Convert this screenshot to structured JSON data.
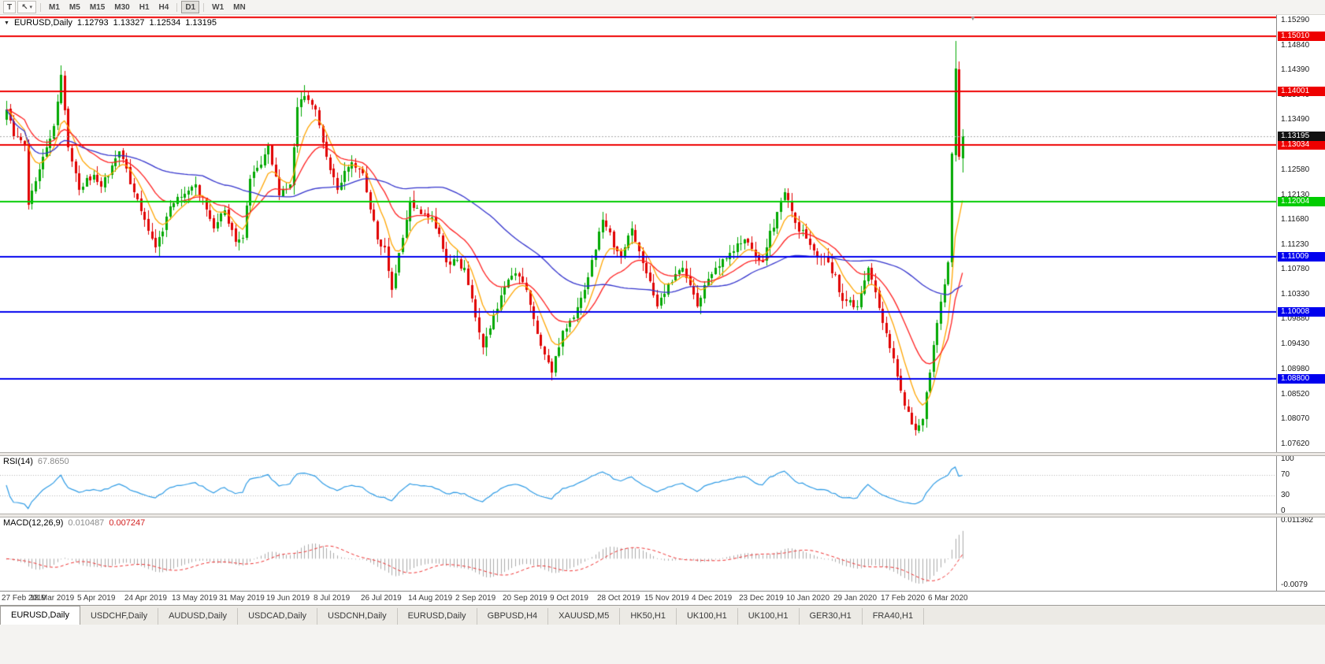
{
  "toolbar": {
    "text_tool": "T",
    "timeframes": [
      "M1",
      "M5",
      "M15",
      "M30",
      "H1",
      "H4",
      "D1",
      "W1",
      "MN"
    ],
    "active_timeframe": "D1"
  },
  "icons": {
    "header_caret": "▼",
    "dropdown_caret": "▾",
    "cursor_tool": "↖",
    "shift_marker": "▼"
  },
  "chart": {
    "header": {
      "symbol": "EURUSD,Daily",
      "open": "1.12793",
      "high": "1.13327",
      "low": "1.12534",
      "close": "1.13195"
    },
    "price_axis": {
      "max": 1.1529,
      "min": 1.0762,
      "ticks": [
        "1.15290",
        "1.14840",
        "1.14390",
        "1.13940",
        "1.13490",
        "1.13040",
        "1.12580",
        "1.12130",
        "1.11680",
        "1.11230",
        "1.10780",
        "1.10330",
        "1.09880",
        "1.09430",
        "1.08980",
        "1.08520",
        "1.08070",
        "1.07620"
      ]
    },
    "current_price": {
      "label": "1.13195",
      "bg": "#111111"
    },
    "date_axis": {
      "labels": [
        "27 Feb 2019",
        "18 Mar 2019",
        "5 Apr 2019",
        "24 Apr 2019",
        "13 May 2019",
        "31 May 2019",
        "19 Jun 2019",
        "8 Jul 2019",
        "26 Jul 2019",
        "14 Aug 2019",
        "2 Sep 2019",
        "20 Sep 2019",
        "9 Oct 2019",
        "28 Oct 2019",
        "15 Nov 2019",
        "4 Dec 2019",
        "23 Dec 2019",
        "10 Jan 2020",
        "29 Jan 2020",
        "17 Feb 2020",
        "6 Mar 2020"
      ]
    }
  },
  "rsi": {
    "name": "RSI(14)",
    "value": "67.8650",
    "ticks": [
      "100",
      "70",
      "30",
      "0"
    ]
  },
  "macd": {
    "name": "MACD(12,26,9)",
    "value_macd": "0.010487",
    "value_signal": "0.007247",
    "ticks": [
      "0.011362",
      "-0.0079"
    ]
  },
  "tabs": {
    "items": [
      "EURUSD,Daily",
      "USDCHF,Daily",
      "AUDUSD,Daily",
      "USDCAD,Daily",
      "USDCNH,Daily",
      "EURUSD,Daily",
      "GBPUSD,H4",
      "XAUUSD,M5",
      "HK50,H1",
      "UK100,H1",
      "UK100,H1",
      "GER30,H1",
      "FRA40,H1"
    ],
    "active_index": 0
  },
  "chart_data": {
    "type": "candlestick",
    "symbol": "EURUSD",
    "timeframe": "Daily",
    "last_candle": {
      "open": 1.12793,
      "high": 1.13327,
      "low": 1.12534,
      "close": 1.13195
    },
    "candle_count": 264,
    "x_label_every": 13,
    "noise": 0.0011,
    "seed": 9,
    "price_anchors": [
      [
        0,
        1.1368
      ],
      [
        2,
        1.132
      ],
      [
        5,
        1.1305
      ],
      [
        6,
        1.1196
      ],
      [
        8,
        1.1238
      ],
      [
        13,
        1.1338
      ],
      [
        15,
        1.143
      ],
      [
        17,
        1.13
      ],
      [
        20,
        1.1222
      ],
      [
        24,
        1.125
      ],
      [
        26,
        1.1228
      ],
      [
        31,
        1.1292
      ],
      [
        36,
        1.1205
      ],
      [
        39,
        1.1148
      ],
      [
        41,
        1.1118
      ],
      [
        45,
        1.1192
      ],
      [
        49,
        1.1215
      ],
      [
        52,
        1.1232
      ],
      [
        57,
        1.1152
      ],
      [
        60,
        1.1185
      ],
      [
        63,
        1.1128
      ],
      [
        65,
        1.1135
      ],
      [
        67,
        1.1242
      ],
      [
        70,
        1.1268
      ],
      [
        72,
        1.1302
      ],
      [
        75,
        1.1212
      ],
      [
        78,
        1.1232
      ],
      [
        80,
        1.1372
      ],
      [
        82,
        1.1392
      ],
      [
        85,
        1.1368
      ],
      [
        88,
        1.1282
      ],
      [
        91,
        1.1222
      ],
      [
        95,
        1.1272
      ],
      [
        98,
        1.1252
      ],
      [
        102,
        1.1132
      ],
      [
        104,
        1.1118
      ],
      [
        106,
        1.1042
      ],
      [
        108,
        1.1108
      ],
      [
        111,
        1.1202
      ],
      [
        114,
        1.1178
      ],
      [
        117,
        1.1172
      ],
      [
        121,
        1.1092
      ],
      [
        126,
        1.1082
      ],
      [
        129,
        1.0992
      ],
      [
        131,
        1.0938
      ],
      [
        133,
        1.0972
      ],
      [
        136,
        1.1032
      ],
      [
        140,
        1.1072
      ],
      [
        143,
        1.1042
      ],
      [
        146,
        1.0962
      ],
      [
        150,
        1.0892
      ],
      [
        153,
        1.0968
      ],
      [
        156,
        1.0992
      ],
      [
        159,
        1.1042
      ],
      [
        164,
        1.1168
      ],
      [
        169,
        1.1102
      ],
      [
        172,
        1.1152
      ],
      [
        176,
        1.1072
      ],
      [
        179,
        1.1012
      ],
      [
        182,
        1.1052
      ],
      [
        186,
        1.1082
      ],
      [
        190,
        1.1012
      ],
      [
        193,
        1.1062
      ],
      [
        195,
        1.1082
      ],
      [
        199,
        1.1108
      ],
      [
        203,
        1.1132
      ],
      [
        206,
        1.1102
      ],
      [
        208,
        1.1092
      ],
      [
        212,
        1.1182
      ],
      [
        214,
        1.1218
      ],
      [
        217,
        1.1162
      ],
      [
        221,
        1.1122
      ],
      [
        226,
        1.1092
      ],
      [
        230,
        1.1022
      ],
      [
        234,
        1.1012
      ],
      [
        237,
        1.1082
      ],
      [
        241,
        1.0982
      ],
      [
        244,
        1.0918
      ],
      [
        247,
        1.0832
      ],
      [
        250,
        1.0788
      ],
      [
        252,
        1.0808
      ],
      [
        254,
        1.0892
      ],
      [
        256,
        1.0982
      ],
      [
        258,
        1.1052
      ],
      [
        259,
        1.1092
      ],
      [
        260,
        1.1288
      ],
      [
        261,
        1.1442
      ],
      [
        262,
        1.1282
      ],
      [
        263,
        1.13195
      ]
    ],
    "candle_overrides": {
      "15": {
        "h": 1.1448
      },
      "82": {
        "h": 1.1412
      },
      "250": {
        "l": 1.0778
      },
      "261": {
        "h": 1.1492
      },
      "263": {
        "o": 1.12793,
        "h": 1.13327,
        "l": 1.12534,
        "c": 1.13195
      }
    },
    "horizontal_levels": [
      {
        "price": 1.15345,
        "color": "#EE0000",
        "labeled": false,
        "label": ""
      },
      {
        "price": 1.1501,
        "color": "#EE0000",
        "labeled": true,
        "label": "1.15010"
      },
      {
        "price": 1.14001,
        "color": "#EE0000",
        "labeled": true,
        "label": "1.14001"
      },
      {
        "price": 1.13034,
        "color": "#EE0000",
        "labeled": true,
        "label": "1.13034"
      },
      {
        "price": 1.12004,
        "color": "#00CC00",
        "labeled": true,
        "label": "1.12004"
      },
      {
        "price": 1.11009,
        "color": "#0000EE",
        "labeled": true,
        "label": "1.11009"
      },
      {
        "price": 1.10008,
        "color": "#0000EE",
        "labeled": true,
        "label": "1.10008"
      },
      {
        "price": 1.088,
        "color": "#0000EE",
        "labeled": true,
        "label": "1.08800"
      }
    ],
    "moving_averages": [
      {
        "period": 8,
        "method": "ema",
        "color": "#FFA500"
      },
      {
        "period": 21,
        "method": "ema",
        "color": "#FF2020"
      },
      {
        "period": 55,
        "method": "sma",
        "color": "#3333CC"
      }
    ],
    "colors": {
      "bull": "#00A800",
      "bear": "#E00000",
      "current_price_line": "#aaaaaa"
    },
    "rsi": {
      "period": 14,
      "value": 67.865,
      "color": "#2E9BE5",
      "levels": [
        70,
        30
      ],
      "range": [
        0,
        100
      ]
    },
    "macd": {
      "fast": 12,
      "slow": 26,
      "signal": 9,
      "macd_value": 0.010487,
      "signal_value": 0.007247,
      "hist_color": "#ABABAB",
      "signal_color": "#EE3030",
      "range": [
        -0.0079,
        0.011362
      ]
    }
  }
}
